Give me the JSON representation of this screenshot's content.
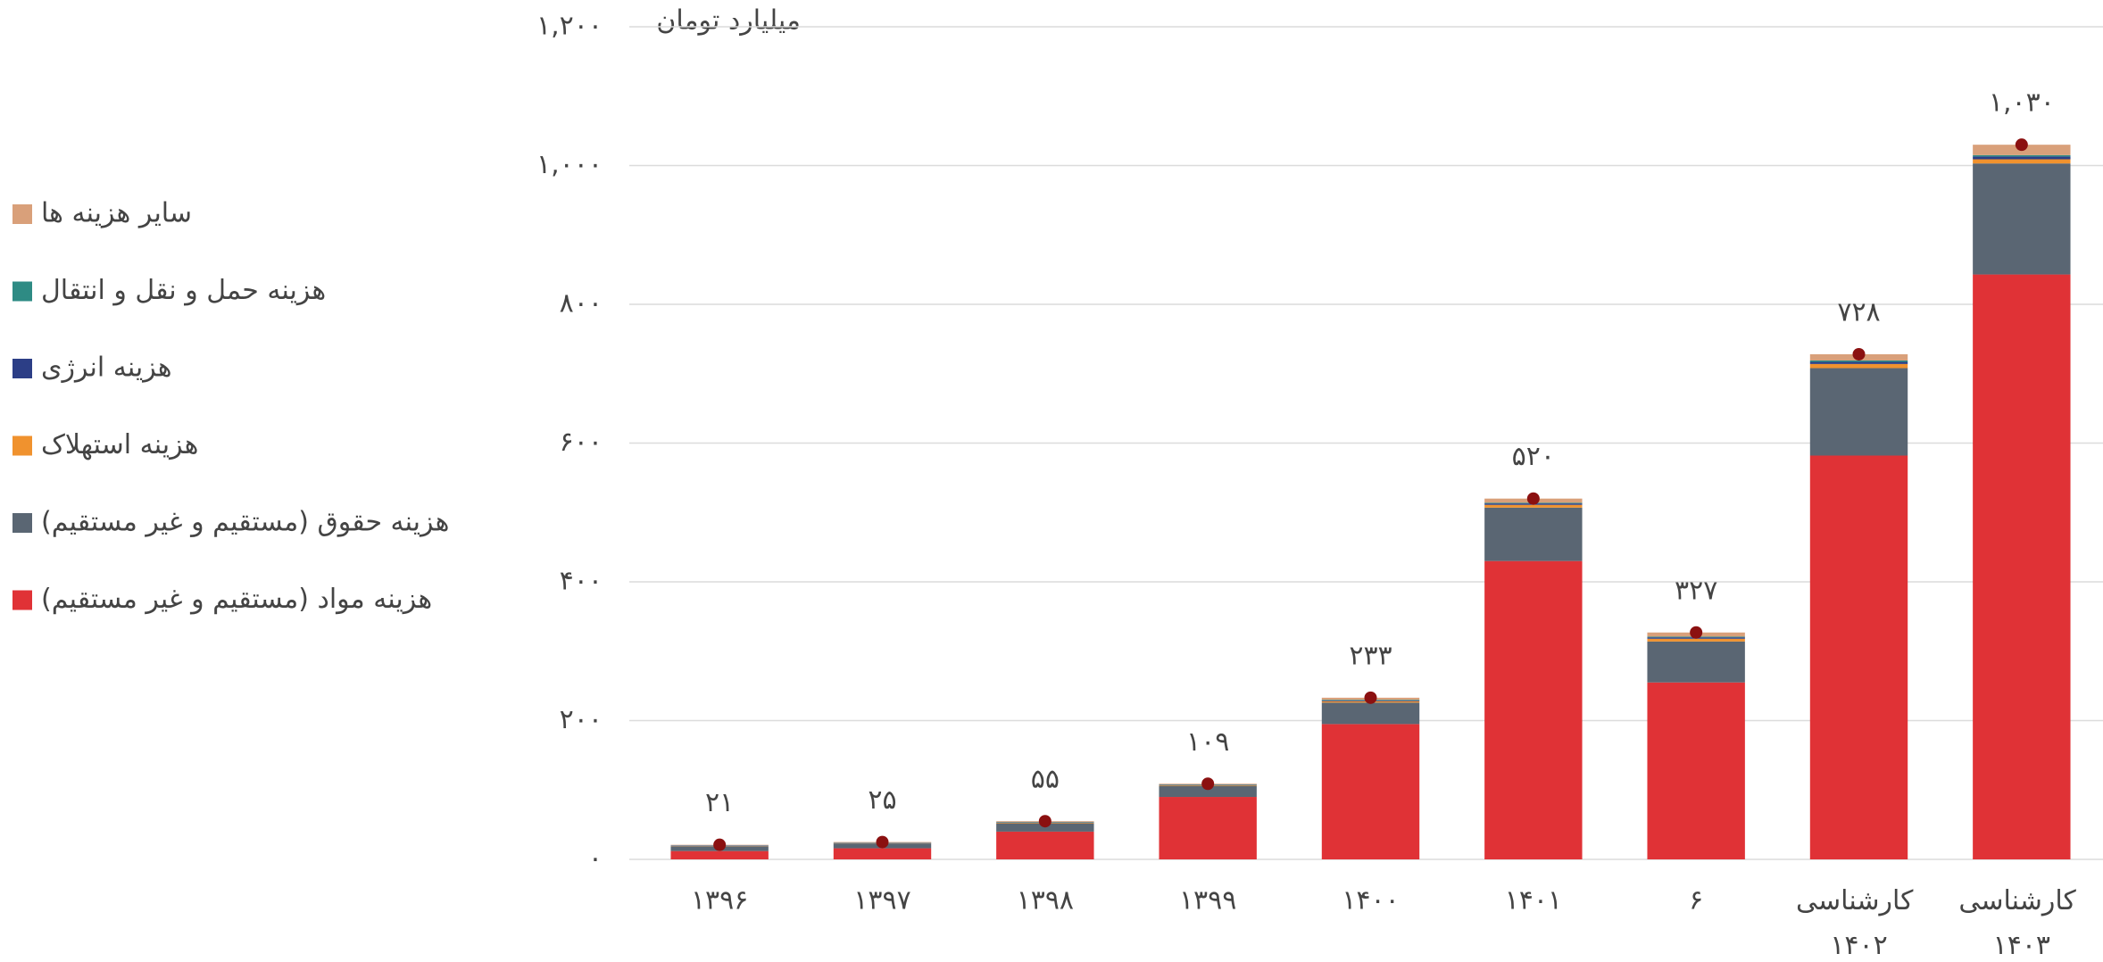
{
  "chart_data": {
    "type": "stacked_bar",
    "y_label": "میلیارد تومان",
    "categories": [
      "۱۳۹۶",
      "۱۳۹۷",
      "۱۳۹۸",
      "۱۳۹۹",
      "۱۴۰۰",
      "۱۴۰۱",
      "۶",
      "کارشناسی ۱۴۰۲",
      "کارشناسی ۱۴۰۳"
    ],
    "series": [
      {
        "name": "هزینه مواد (مستقیم و غیر مستقیم)",
        "color": "#e03236",
        "values": [
          12,
          16,
          40,
          90,
          195,
          430,
          255,
          582,
          843
        ]
      },
      {
        "name": "هزینه حقوق (مستقیم و غیر مستقیم)",
        "color": "#5a6673",
        "values": [
          7,
          7,
          12,
          16,
          31,
          77,
          59,
          126,
          160
        ]
      },
      {
        "name": "هزینه استهلاک",
        "color": "#f0922e",
        "values": [
          0.5,
          0.5,
          1,
          1,
          2,
          4,
          4,
          6,
          6
        ]
      },
      {
        "name": "هزینه انرژی",
        "color": "#2c3e86",
        "values": [
          0.5,
          0.5,
          0.5,
          0.5,
          1,
          2,
          2,
          3,
          4
        ]
      },
      {
        "name": "هزینه حمل و نقل و انتقال",
        "color": "#2e8b84",
        "values": [
          0.3,
          0.3,
          0.5,
          0.5,
          1,
          1,
          1,
          2,
          2
        ]
      },
      {
        "name": "سایر هزینه ها",
        "color": "#d9a07a",
        "values": [
          0.7,
          0.7,
          1,
          1,
          3,
          6,
          6,
          9,
          15
        ]
      }
    ],
    "totals": {
      "color": "#8b1010",
      "values": [
        21,
        25,
        55,
        109,
        233,
        520,
        327,
        728,
        1030
      ],
      "value_labels": [
        "۲۱",
        "۲۵",
        "۵۵",
        "۱۰۹",
        "۲۳۳",
        "۵۲۰",
        "۳۲۷",
        "۷۲۸",
        "۱,۰۳۰"
      ]
    },
    "ylim": [
      0,
      1200
    ],
    "yticks": [
      {
        "value": 0,
        "label": "۰"
      },
      {
        "value": 200,
        "label": "۲۰۰"
      },
      {
        "value": 400,
        "label": "۴۰۰"
      },
      {
        "value": 600,
        "label": "۶۰۰"
      },
      {
        "value": 800,
        "label": "۸۰۰"
      },
      {
        "value": 1000,
        "label": "۱,۰۰۰"
      },
      {
        "value": 1200,
        "label": "۱,۲۰۰"
      }
    ],
    "grid": true,
    "legend": "left"
  }
}
